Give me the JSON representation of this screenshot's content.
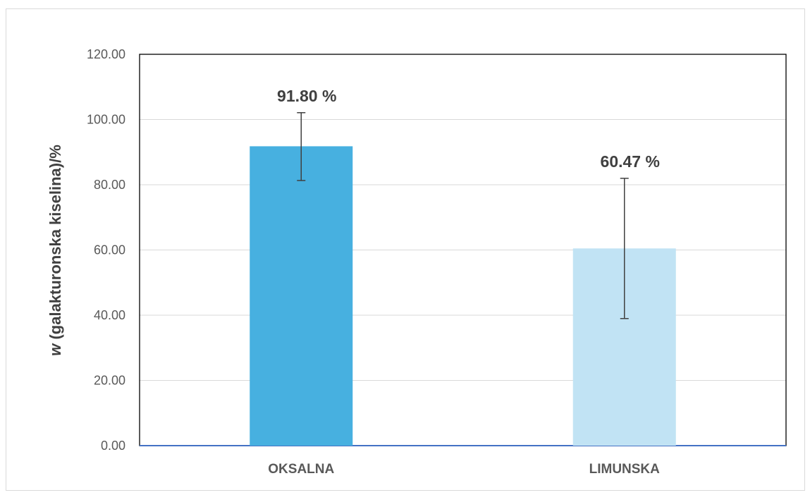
{
  "chart_data": {
    "type": "bar",
    "categories": [
      "OKSALNA",
      "LIMUNSKA"
    ],
    "values": [
      91.8,
      60.47
    ],
    "error_plus": [
      10.3,
      21.5
    ],
    "error_minus": [
      10.5,
      21.5
    ],
    "data_labels": [
      "91.80 %",
      "60.47 %"
    ],
    "bar_colors": [
      "#47b0e0",
      "#c1e3f4"
    ],
    "ylabel_var": "w",
    "ylabel_rest": " (galakturonska kiselina)/%",
    "ylim": [
      0,
      120
    ],
    "yticks": [
      "0.00",
      "20.00",
      "40.00",
      "60.00",
      "80.00",
      "100.00",
      "120.00"
    ],
    "grid": true,
    "legend": "none"
  }
}
